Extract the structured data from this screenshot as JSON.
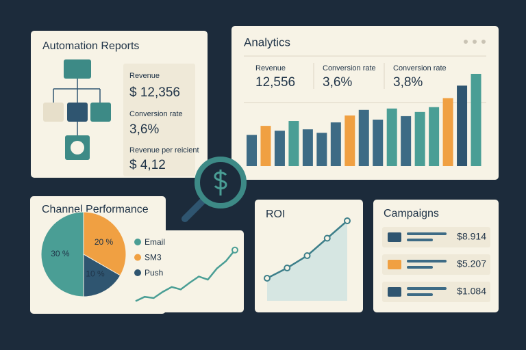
{
  "automation_reports": {
    "title": "Automation Reports",
    "stats": [
      {
        "label": "Revenue",
        "value": "$ 12,356"
      },
      {
        "label": "Conversion rate",
        "value": "3,6%"
      },
      {
        "label": "Revenue per reicient",
        "value": "$ 4,12"
      }
    ]
  },
  "analytics": {
    "title": "Analytics",
    "stats": [
      {
        "label": "Revenue",
        "value": "12,556"
      },
      {
        "label": "Conversion rate",
        "value": "3,6%"
      },
      {
        "label": "Conversion rate",
        "value": "3,8%"
      }
    ],
    "chart": {
      "type": "bar",
      "values": [
        45,
        58,
        51,
        65,
        53,
        48,
        63,
        73,
        81,
        67,
        83,
        72,
        78,
        85,
        98,
        116,
        133
      ],
      "colors": [
        "#3d6b85",
        "#f0a042",
        "#3d6b85",
        "#4a9e95",
        "#3d6b85",
        "#3d6b85",
        "#3d6b85",
        "#f0a042",
        "#3d6b85",
        "#3d6b85",
        "#4a9e95",
        "#3d6b85",
        "#4a9e95",
        "#4a9e95",
        "#f0a042",
        "#2f5570",
        "#4a9e95"
      ]
    }
  },
  "channel_performance": {
    "title": "Channel Performance",
    "chart": {
      "type": "pie",
      "series": [
        {
          "name": "Email",
          "color": "#4a9e95",
          "value": 30,
          "value_label": "30 %"
        },
        {
          "name": "SM3",
          "color": "#f0a042",
          "value": 20,
          "value_label": "20 %"
        },
        {
          "name": "Push",
          "color": "#2f5570",
          "value": 10,
          "value_label": "10 %"
        }
      ]
    },
    "trend": {
      "type": "line",
      "color": "#4a9e95",
      "values": [
        5,
        12,
        10,
        20,
        28,
        24,
        35,
        45,
        40,
        58,
        70,
        88
      ]
    }
  },
  "roi": {
    "title": "ROI",
    "chart": {
      "type": "area",
      "color": "#3d7f8a",
      "values": [
        22,
        32,
        44,
        61,
        78
      ]
    }
  },
  "campaigns": {
    "title": "Campaigns",
    "rows": [
      {
        "amount": "$8.914"
      },
      {
        "amount": "$5.207"
      },
      {
        "amount": "$1.084"
      }
    ]
  }
}
